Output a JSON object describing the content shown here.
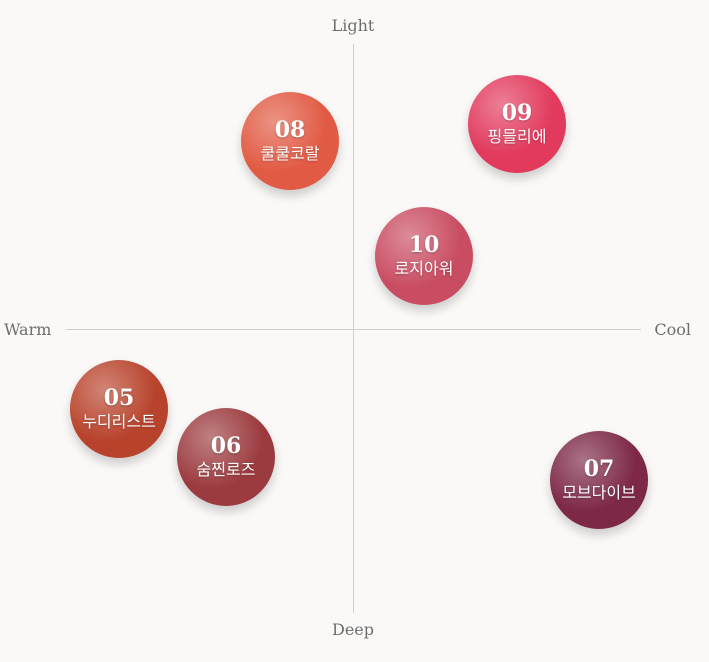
{
  "axes": {
    "top": "Light",
    "bottom": "Deep",
    "left": "Warm",
    "right": "Cool"
  },
  "shades": [
    {
      "number": "08",
      "name": "쿨쿨코랄",
      "color": "#e15a43"
    },
    {
      "number": "09",
      "name": "핑믈리에",
      "color": "#e23a5d"
    },
    {
      "number": "10",
      "name": "로지아워",
      "color": "#c94d62"
    },
    {
      "number": "05",
      "name": "누디리스트",
      "color": "#b8432c"
    },
    {
      "number": "06",
      "name": "숨찐로즈",
      "color": "#9c3b3f"
    },
    {
      "number": "07",
      "name": "모브다이브",
      "color": "#7d2847"
    }
  ]
}
